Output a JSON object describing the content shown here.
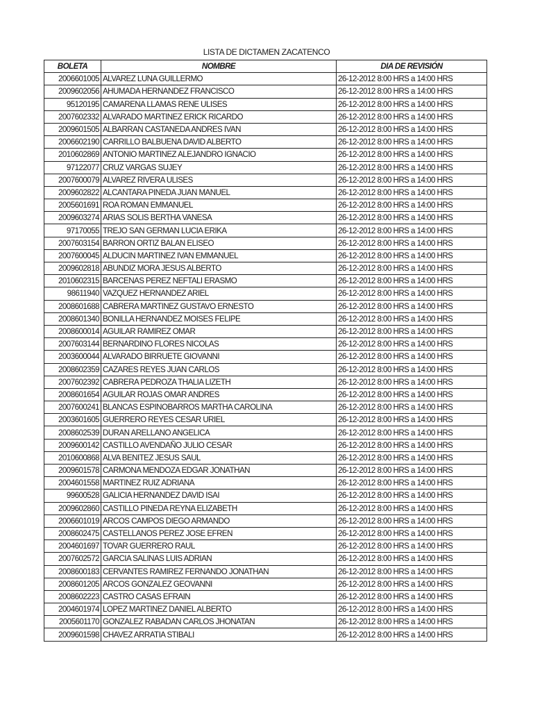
{
  "title": "LISTA DE DICTAMEN ZACATENCO",
  "columns": [
    "BOLETA",
    "NOMBRE",
    "DIA DE REVISIÓN"
  ],
  "rows": [
    [
      "2006601005",
      "ALVAREZ LUNA GUILLERMO",
      "26-12-2012 8:00 HRS a 14:00 HRS"
    ],
    [
      "2009602056",
      "AHUMADA HERNANDEZ FRANCISCO",
      "26-12-2012 8:00 HRS a 14:00 HRS"
    ],
    [
      "95120195",
      "CAMARENA LLAMAS RENE ULISES",
      "26-12-2012 8:00 HRS a 14:00 HRS"
    ],
    [
      "2007602332",
      "ALVARADO MARTINEZ ERICK RICARDO",
      "26-12-2012 8:00 HRS a 14:00 HRS"
    ],
    [
      "2009601505",
      "ALBARRAN CASTANEDA ANDRES IVAN",
      "26-12-2012 8:00 HRS a 14:00 HRS"
    ],
    [
      "2006602190",
      "CARRILLO BALBUENA DAVID ALBERTO",
      "26-12-2012 8:00 HRS a 14:00 HRS"
    ],
    [
      "2010602869",
      "ANTONIO MARTINEZ ALEJANDRO IGNACIO",
      "26-12-2012 8:00 HRS a 14:00 HRS"
    ],
    [
      "97122077",
      "CRUZ VARGAS SUJEY",
      "26-12-2012 8:00 HRS a 14:00 HRS"
    ],
    [
      "2007600079",
      "ALVAREZ RIVERA ULISES",
      "26-12-2012 8:00 HRS a 14:00 HRS"
    ],
    [
      "2009602822",
      "ALCANTARA PINEDA JUAN MANUEL",
      "26-12-2012 8:00 HRS a 14:00 HRS"
    ],
    [
      "2005601691",
      "ROA ROMAN EMMANUEL",
      "26-12-2012 8:00 HRS a 14:00 HRS"
    ],
    [
      "2009603274",
      "ARIAS SOLIS BERTHA VANESA",
      "26-12-2012 8:00 HRS a 14:00 HRS"
    ],
    [
      "97170055",
      "TREJO SAN GERMAN LUCIA ERIKA",
      "26-12-2012 8:00 HRS a 14:00 HRS"
    ],
    [
      "2007603154",
      "BARRON ORTIZ BALAN ELISEO",
      "26-12-2012 8:00 HRS a 14:00 HRS"
    ],
    [
      "2007600045",
      "ALDUCIN MARTINEZ IVAN EMMANUEL",
      "26-12-2012 8:00 HRS a 14:00 HRS"
    ],
    [
      "2009602818",
      "ABUNDIZ MORA JESUS ALBERTO",
      "26-12-2012 8:00 HRS a 14:00 HRS"
    ],
    [
      "2010602315",
      "BARCENAS PEREZ NEFTALI ERASMO",
      "26-12-2012 8:00 HRS a 14:00 HRS"
    ],
    [
      "98611940",
      "VAZQUEZ HERNANDEZ ARIEL",
      "26-12-2012 8:00 HRS a 14:00 HRS"
    ],
    [
      "2008601688",
      "CABRERA MARTINEZ GUSTAVO ERNESTO",
      "26-12-2012 8:00 HRS a 14:00 HRS"
    ],
    [
      "2008601340",
      "BONILLA HERNANDEZ MOISES FELIPE",
      "26-12-2012 8:00 HRS a 14:00 HRS"
    ],
    [
      "2008600014",
      "AGUILAR RAMIREZ OMAR",
      "26-12-2012 8:00 HRS a 14:00 HRS"
    ],
    [
      "2007603144",
      "BERNARDINO FLORES NICOLAS",
      "26-12-2012 8:00 HRS a 14:00 HRS"
    ],
    [
      "2003600044",
      "ALVARADO BIRRUETE GIOVANNI",
      "26-12-2012 8:00 HRS a 14:00 HRS"
    ],
    [
      "2008602359",
      "CAZARES REYES JUAN CARLOS",
      "26-12-2012 8:00 HRS a 14:00 HRS"
    ],
    [
      "2007602392",
      "CABRERA PEDROZA THALIA LIZETH",
      "26-12-2012 8:00 HRS a 14:00 HRS"
    ],
    [
      "2008601654",
      "AGUILAR ROJAS OMAR ANDRES",
      "26-12-2012 8:00 HRS a 14:00 HRS"
    ],
    [
      "2007600241",
      "BLANCAS ESPINOBARROS MARTHA CAROLINA",
      "26-12-2012 8:00 HRS a 14:00 HRS"
    ],
    [
      "2003601605",
      "GUERRERO REYES CESAR URIEL",
      "26-12-2012 8:00 HRS a 14:00 HRS"
    ],
    [
      "2008602539",
      "DURAN ARELLANO ANGELICA",
      "26-12-2012 8:00 HRS a 14:00 HRS"
    ],
    [
      "2009600142",
      "CASTILLO AVENDAÑO JULIO CESAR",
      "26-12-2012 8:00 HRS a 14:00 HRS"
    ],
    [
      "2010600868",
      "ALVA BENITEZ JESUS SAUL",
      "26-12-2012 8:00 HRS a 14:00 HRS"
    ],
    [
      "2009601578",
      "CARMONA MENDOZA EDGAR JONATHAN",
      "26-12-2012 8:00 HRS a 14:00 HRS"
    ],
    [
      "2004601558",
      "MARTINEZ RUIZ ADRIANA",
      "26-12-2012 8:00 HRS a 14:00 HRS"
    ],
    [
      "99600528",
      "GALICIA HERNANDEZ DAVID ISAI",
      "26-12-2012 8:00 HRS a 14:00 HRS"
    ],
    [
      "2009602860",
      "CASTILLO PINEDA REYNA ELIZABETH",
      "26-12-2012 8:00 HRS a 14:00 HRS"
    ],
    [
      "2006601019",
      "ARCOS CAMPOS DIEGO ARMANDO",
      "26-12-2012 8:00 HRS a 14:00 HRS"
    ],
    [
      "2008602475",
      "CASTELLANOS PEREZ JOSE EFREN",
      "26-12-2012 8:00 HRS a 14:00 HRS"
    ],
    [
      "2004601697",
      "TOVAR GUERRERO RAUL",
      "26-12-2012 8:00 HRS a 14:00 HRS"
    ],
    [
      "2007602572",
      "GARCIA SALINAS LUIS ADRIAN",
      "26-12-2012 8:00 HRS a 14:00 HRS"
    ],
    [
      "2008600183",
      "CERVANTES RAMIREZ FERNANDO JONATHAN",
      "26-12-2012 8:00 HRS a 14:00 HRS"
    ],
    [
      "2008601205",
      "ARCOS GONZALEZ GEOVANNI",
      "26-12-2012 8:00 HRS a 14:00 HRS"
    ],
    [
      "2008602223",
      "CASTRO CASAS EFRAIN",
      "26-12-2012 8:00 HRS a 14:00 HRS"
    ],
    [
      "2004601974",
      "LOPEZ MARTINEZ DANIEL ALBERTO",
      "26-12-2012 8:00 HRS a 14:00 HRS"
    ],
    [
      "2005601170",
      "GONZALEZ RABADAN CARLOS JHONATAN",
      "26-12-2012 8:00 HRS a 14:00 HRS"
    ],
    [
      "2009601598",
      "CHAVEZ ARRATIA STIBALI",
      "26-12-2012 8:00 HRS a 14:00 HRS"
    ]
  ]
}
